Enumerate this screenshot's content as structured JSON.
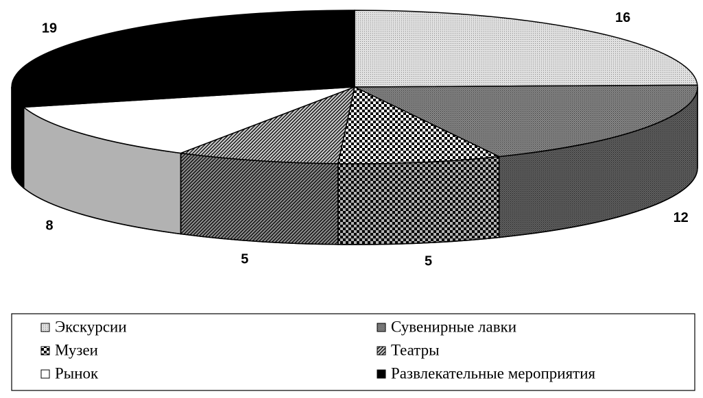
{
  "chart_data": {
    "type": "pie",
    "categories": [
      "Экскурсии",
      "Сувенирные лавки",
      "Музеи",
      "Театры",
      "Рынок",
      "Развлекательные мероприятия"
    ],
    "values": [
      16,
      12,
      5,
      5,
      8,
      19
    ],
    "colors": [
      "#e0e0e0",
      "#8a8a8a",
      "#ffffff",
      "#c8c8c8",
      "#ffffff",
      "#000000"
    ]
  }
}
